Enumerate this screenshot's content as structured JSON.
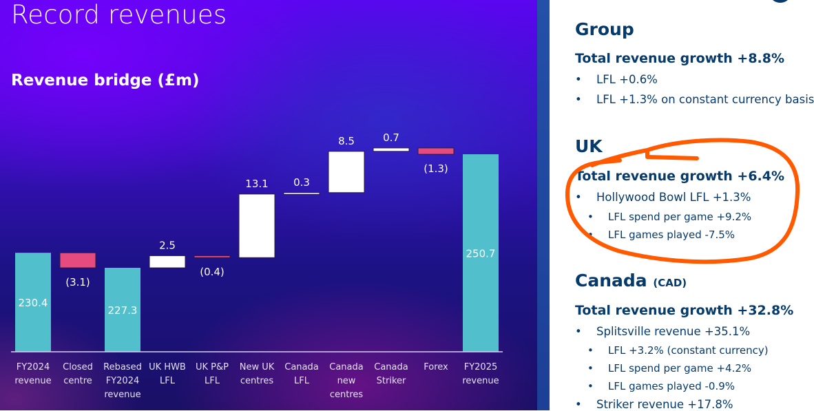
{
  "slide": {
    "title": "Record revenues",
    "subtitle": "Revenue bridge (£m)"
  },
  "colors": {
    "total_bar": "#52c0cc",
    "decrease_bar": "#e54b7e",
    "increase_bar": "#ffffff",
    "text_navy": "#063a6b",
    "annotation": "#ff5a00"
  },
  "chart_data": {
    "type": "waterfall",
    "title": "Revenue bridge (£m)",
    "ylim": [
      210,
      256
    ],
    "grid": false,
    "categories": [
      [
        "FY2024",
        "revenue"
      ],
      [
        "Closed",
        "centre"
      ],
      [
        "Rebased",
        "FY2024",
        "revenue"
      ],
      [
        "UK HWB",
        "LFL"
      ],
      [
        "UK P&P",
        "LFL"
      ],
      [
        "New UK",
        "centres"
      ],
      [
        "Canada",
        "LFL"
      ],
      [
        "Canada",
        "new",
        "centres"
      ],
      [
        "Canada",
        "Striker"
      ],
      [
        "Forex"
      ],
      [
        "FY2025",
        "revenue"
      ]
    ],
    "values": [
      230.4,
      -3.1,
      227.3,
      2.5,
      -0.4,
      13.1,
      0.3,
      8.5,
      0.7,
      -1.3,
      250.7
    ],
    "kinds": [
      "total",
      "delta",
      "total",
      "delta",
      "delta",
      "delta",
      "delta",
      "delta",
      "delta",
      "delta",
      "total"
    ],
    "labels": [
      "230.4",
      "(3.1)",
      "227.3",
      "2.5",
      "(0.4)",
      "13.1",
      "0.3",
      "8.5",
      "0.7",
      "(1.3)",
      "250.7"
    ]
  },
  "right_panel": {
    "group": {
      "heading": "Group",
      "growth": "Total revenue growth +8.8%",
      "bullets": [
        "LFL +0.6%",
        "LFL +1.3% on constant currency basis"
      ]
    },
    "uk": {
      "heading": "UK",
      "growth": "Total revenue growth +6.4%",
      "bullet": "Hollywood Bowl LFL +1.3%",
      "sub_bullets": [
        "LFL spend per game +9.2%",
        "LFL games played -7.5%"
      ]
    },
    "canada": {
      "heading": "Canada",
      "currency": "(CAD)",
      "growth": "Total revenue growth +32.8%",
      "bullet": "Splitsville revenue +35.1%",
      "sub_bullets": [
        "LFL +3.2% (constant currency)",
        "LFL spend per game +4.2%",
        "LFL games played -0.9%"
      ],
      "bullet2": "Striker revenue +17.8%"
    },
    "bullet_char": "•"
  }
}
